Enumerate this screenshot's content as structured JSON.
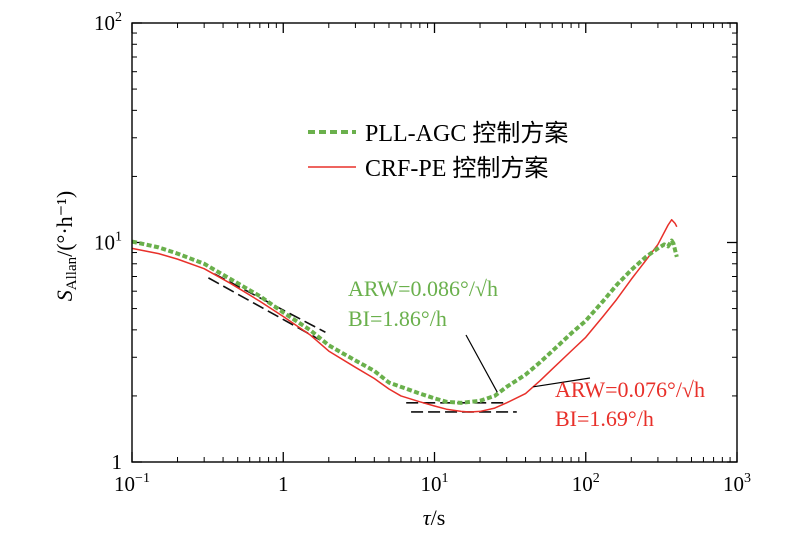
{
  "chart_data": {
    "type": "line",
    "x_scale": "log",
    "y_scale": "log",
    "xlim": [
      0.1,
      1000
    ],
    "ylim": [
      1,
      100
    ],
    "xlabel": {
      "main": "τ",
      "suffix": "/s"
    },
    "ylabel": {
      "main": "S",
      "sub": "Allan",
      "suffix": "/(°·h⁻¹)"
    },
    "x_ticks": [
      {
        "value": 0.1,
        "base": "10",
        "exp": "−1"
      },
      {
        "value": 1,
        "base": "1",
        "exp": ""
      },
      {
        "value": 10,
        "base": "10",
        "exp": "1"
      },
      {
        "value": 100,
        "base": "10",
        "exp": "2"
      },
      {
        "value": 1000,
        "base": "10",
        "exp": "3"
      }
    ],
    "y_ticks": [
      {
        "value": 1,
        "base": "1",
        "exp": ""
      },
      {
        "value": 10,
        "base": "10",
        "exp": "1"
      },
      {
        "value": 100,
        "base": "10",
        "exp": "2"
      }
    ],
    "legend": {
      "placement": "top-center"
    },
    "series": [
      {
        "name": "PLL-AGC 控制方案",
        "color": "#6ab04c",
        "style": "dashed",
        "x": [
          0.1,
          0.15,
          0.2,
          0.3,
          0.45,
          0.7,
          1,
          1.5,
          2,
          3,
          4,
          5,
          6,
          8,
          10,
          12,
          15,
          20,
          25,
          30,
          40,
          50,
          60,
          80,
          100,
          130,
          160,
          200,
          250,
          300,
          330,
          350,
          370,
          380,
          390,
          400
        ],
        "y": [
          10.1,
          9.5,
          8.9,
          8.0,
          6.8,
          5.7,
          4.8,
          4.0,
          3.4,
          2.9,
          2.6,
          2.3,
          2.2,
          2.05,
          1.95,
          1.88,
          1.86,
          1.9,
          2.0,
          2.2,
          2.5,
          2.85,
          3.2,
          3.85,
          4.4,
          5.4,
          6.4,
          7.5,
          8.6,
          9.4,
          9.8,
          9.6,
          10.2,
          9.9,
          9.2,
          8.6
        ]
      },
      {
        "name": "CRF-PE 控制方案",
        "color": "#e8302a",
        "style": "solid",
        "x": [
          0.1,
          0.15,
          0.2,
          0.3,
          0.45,
          0.7,
          1,
          1.5,
          2,
          3,
          4,
          5,
          6,
          8,
          10,
          12,
          15,
          17,
          20,
          25,
          30,
          40,
          50,
          60,
          80,
          100,
          130,
          160,
          200,
          250,
          300,
          350,
          370,
          390,
          400
        ],
        "y": [
          9.4,
          8.9,
          8.4,
          7.6,
          6.5,
          5.4,
          4.6,
          3.8,
          3.2,
          2.7,
          2.4,
          2.15,
          2.0,
          1.88,
          1.8,
          1.74,
          1.7,
          1.69,
          1.7,
          1.76,
          1.86,
          2.05,
          2.35,
          2.65,
          3.2,
          3.7,
          4.6,
          5.5,
          6.8,
          8.3,
          9.8,
          12.0,
          12.7,
          12.2,
          11.8
        ]
      }
    ],
    "reference_lines": [
      {
        "x": [
          0.35,
          1.9
        ],
        "y": [
          7.2,
          3.9
        ]
      },
      {
        "x": [
          0.32,
          1.75
        ],
        "y": [
          6.9,
          3.6
        ]
      },
      {
        "x": [
          6.5,
          30
        ],
        "y": [
          1.86,
          1.86
        ]
      },
      {
        "x": [
          7,
          35
        ],
        "y": [
          1.69,
          1.69
        ]
      }
    ],
    "annotations": [
      {
        "lines": [
          "ARW=0.086°/√h",
          "BI=1.86°/h"
        ],
        "color": "#6ab04c",
        "pointer_to": {
          "x": 26,
          "y": 2.08
        }
      },
      {
        "lines": [
          "ARW=0.076°/√h",
          "BI=1.69°/h"
        ],
        "color": "#e8302a",
        "pointer_to": {
          "x": 45,
          "y": 2.2
        }
      }
    ]
  }
}
